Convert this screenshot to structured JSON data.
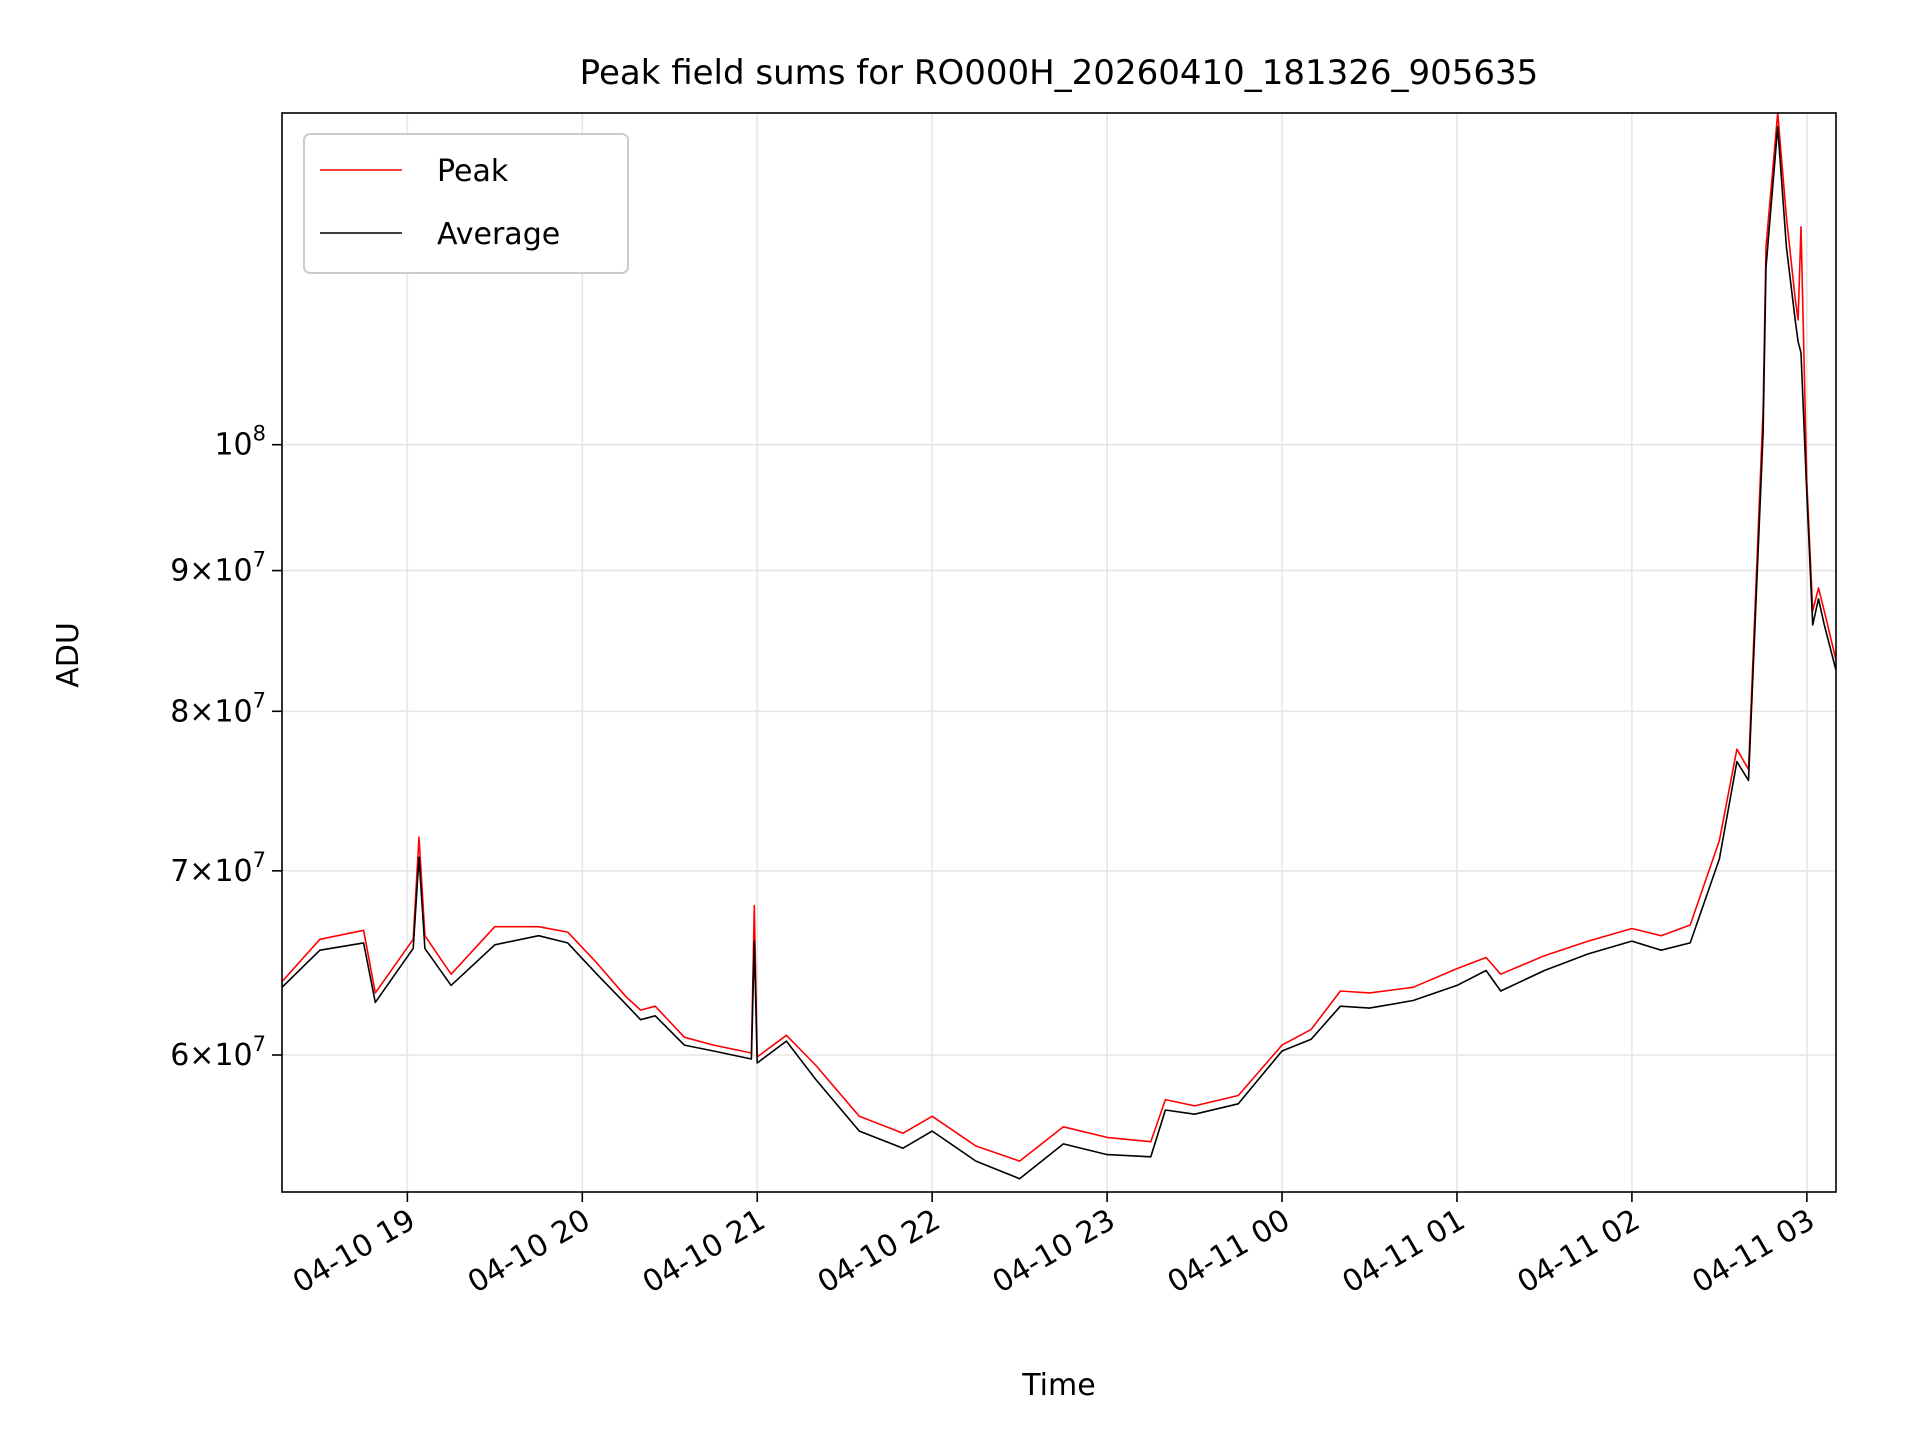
{
  "chart_data": {
    "type": "line",
    "title": "Peak field sums for RO000H_20260410_181326_905635",
    "xlabel": "Time",
    "ylabel": "ADU",
    "x_unit": "datetime",
    "xlim": [
      "2026-04-10 18:17",
      "2026-04-11 03:10"
    ],
    "ylim": [
      53500000,
      132000000
    ],
    "yscale": "log",
    "grid": true,
    "legend": {
      "position": "top-left"
    },
    "x_ticks": [
      {
        "value": "2026-04-10 19:00",
        "label": "04-10 19"
      },
      {
        "value": "2026-04-10 20:00",
        "label": "04-10 20"
      },
      {
        "value": "2026-04-10 21:00",
        "label": "04-10 21"
      },
      {
        "value": "2026-04-10 22:00",
        "label": "04-10 22"
      },
      {
        "value": "2026-04-10 23:00",
        "label": "04-10 23"
      },
      {
        "value": "2026-04-11 00:00",
        "label": "04-11 00"
      },
      {
        "value": "2026-04-11 01:00",
        "label": "04-11 01"
      },
      {
        "value": "2026-04-11 02:00",
        "label": "04-11 02"
      },
      {
        "value": "2026-04-11 03:00",
        "label": "04-11 03"
      }
    ],
    "y_ticks": [
      {
        "value": 60000000,
        "base": "6",
        "exp": "7",
        "label": "6 × 10^7"
      },
      {
        "value": 70000000,
        "base": "7",
        "exp": "7",
        "label": "7 × 10^7"
      },
      {
        "value": 80000000,
        "base": "8",
        "exp": "7",
        "label": "8 × 10^7"
      },
      {
        "value": 90000000,
        "base": "9",
        "exp": "7",
        "label": "9 × 10^7"
      },
      {
        "value": 100000000,
        "base": "",
        "exp": "8",
        "label": "10^8"
      }
    ],
    "series": [
      {
        "name": "Peak",
        "color": "#ff0000",
        "x": [
          "2026-04-10 18:17",
          "2026-04-10 18:30",
          "2026-04-10 18:45",
          "2026-04-10 18:49",
          "2026-04-10 19:02",
          "2026-04-10 19:04",
          "2026-04-10 19:06",
          "2026-04-10 19:15",
          "2026-04-10 19:30",
          "2026-04-10 19:45",
          "2026-04-10 19:55",
          "2026-04-10 20:05",
          "2026-04-10 20:15",
          "2026-04-10 20:20",
          "2026-04-10 20:25",
          "2026-04-10 20:35",
          "2026-04-10 20:45",
          "2026-04-10 20:58",
          "2026-04-10 20:59",
          "2026-04-10 21:00",
          "2026-04-10 21:10",
          "2026-04-10 21:20",
          "2026-04-10 21:35",
          "2026-04-10 21:50",
          "2026-04-10 22:00",
          "2026-04-10 22:15",
          "2026-04-10 22:30",
          "2026-04-10 22:45",
          "2026-04-10 23:00",
          "2026-04-10 23:15",
          "2026-04-10 23:20",
          "2026-04-10 23:30",
          "2026-04-10 23:45",
          "2026-04-11 00:00",
          "2026-04-11 00:10",
          "2026-04-11 00:20",
          "2026-04-11 00:30",
          "2026-04-11 00:45",
          "2026-04-11 01:00",
          "2026-04-11 01:10",
          "2026-04-11 01:15",
          "2026-04-11 01:30",
          "2026-04-11 01:45",
          "2026-04-11 02:00",
          "2026-04-11 02:10",
          "2026-04-11 02:20",
          "2026-04-11 02:30",
          "2026-04-11 02:36",
          "2026-04-11 02:40",
          "2026-04-11 02:45",
          "2026-04-11 02:46",
          "2026-04-11 02:50",
          "2026-04-11 02:53",
          "2026-04-11 02:56",
          "2026-04-11 02:57",
          "2026-04-11 02:58",
          "2026-04-11 03:00",
          "2026-04-11 03:02",
          "2026-04-11 03:04",
          "2026-04-11 03:06",
          "2026-04-11 03:10"
        ],
        "values": [
          63800000,
          66100000,
          66600000,
          63200000,
          66100000,
          72000000,
          66300000,
          64200000,
          66800000,
          66800000,
          66500000,
          64800000,
          63000000,
          62300000,
          62500000,
          60900000,
          60500000,
          60100000,
          68000000,
          59900000,
          61000000,
          59500000,
          57000000,
          56200000,
          57000000,
          55600000,
          54900000,
          56500000,
          56000000,
          55800000,
          57800000,
          57500000,
          58000000,
          60500000,
          61300000,
          63300000,
          63200000,
          63500000,
          64500000,
          65100000,
          64200000,
          65200000,
          66000000,
          66700000,
          66300000,
          66900000,
          71800000,
          77500000,
          76200000,
          103000000,
          118000000,
          132000000,
          121000000,
          113000000,
          111000000,
          120000000,
          97000000,
          87000000,
          88700000,
          87000000,
          83500000
        ]
      },
      {
        "name": "Average",
        "color": "#000000",
        "x": [
          "2026-04-10 18:17",
          "2026-04-10 18:30",
          "2026-04-10 18:45",
          "2026-04-10 18:49",
          "2026-04-10 19:02",
          "2026-04-10 19:04",
          "2026-04-10 19:06",
          "2026-04-10 19:15",
          "2026-04-10 19:30",
          "2026-04-10 19:45",
          "2026-04-10 19:55",
          "2026-04-10 20:05",
          "2026-04-10 20:15",
          "2026-04-10 20:20",
          "2026-04-10 20:25",
          "2026-04-10 20:35",
          "2026-04-10 20:45",
          "2026-04-10 20:58",
          "2026-04-10 20:59",
          "2026-04-10 21:00",
          "2026-04-10 21:10",
          "2026-04-10 21:20",
          "2026-04-10 21:35",
          "2026-04-10 21:50",
          "2026-04-10 22:00",
          "2026-04-10 22:15",
          "2026-04-10 22:30",
          "2026-04-10 22:45",
          "2026-04-10 23:00",
          "2026-04-10 23:15",
          "2026-04-10 23:20",
          "2026-04-10 23:30",
          "2026-04-10 23:45",
          "2026-04-11 00:00",
          "2026-04-11 00:10",
          "2026-04-11 00:20",
          "2026-04-11 00:30",
          "2026-04-11 00:45",
          "2026-04-11 01:00",
          "2026-04-11 01:10",
          "2026-04-11 01:15",
          "2026-04-11 01:30",
          "2026-04-11 01:45",
          "2026-04-11 02:00",
          "2026-04-11 02:10",
          "2026-04-11 02:20",
          "2026-04-11 02:30",
          "2026-04-11 02:36",
          "2026-04-11 02:40",
          "2026-04-11 02:45",
          "2026-04-11 02:46",
          "2026-04-11 02:50",
          "2026-04-11 02:53",
          "2026-04-11 02:56",
          "2026-04-11 02:57",
          "2026-04-11 02:58",
          "2026-04-11 03:00",
          "2026-04-11 03:02",
          "2026-04-11 03:04",
          "2026-04-11 03:06",
          "2026-04-11 03:10"
        ],
        "values": [
          63500000,
          65500000,
          65900000,
          62700000,
          65600000,
          70800000,
          65600000,
          63600000,
          65800000,
          66300000,
          65900000,
          64200000,
          62600000,
          61800000,
          62000000,
          60500000,
          60200000,
          59800000,
          66000000,
          59600000,
          60700000,
          58800000,
          56300000,
          55500000,
          56300000,
          54900000,
          54100000,
          55700000,
          55200000,
          55100000,
          57300000,
          57100000,
          57600000,
          60200000,
          60800000,
          62500000,
          62400000,
          62800000,
          63600000,
          64400000,
          63300000,
          64400000,
          65300000,
          66000000,
          65500000,
          65900000,
          70700000,
          76700000,
          75500000,
          101000000,
          116000000,
          130500000,
          118000000,
          111000000,
          109000000,
          108000000,
          96000000,
          86000000,
          87900000,
          86000000,
          82800000
        ]
      }
    ]
  }
}
